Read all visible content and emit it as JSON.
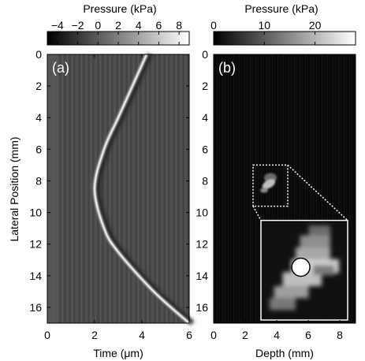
{
  "chart_data": [
    {
      "type": "heatmap",
      "panel_label": "(a)",
      "colorbar": {
        "title": "Pressure (kPa)",
        "range": [
          -5,
          9
        ],
        "ticks": [
          -4,
          -2,
          0,
          2,
          4,
          6,
          8
        ],
        "tick_labels": [
          "−4",
          "−2",
          "0",
          "2",
          "4",
          "6",
          "8"
        ],
        "colormap": "grayscale"
      },
      "xlabel": "Time (μm)",
      "ylabel": "Lateral Position (mm)",
      "xlim": [
        0,
        6
      ],
      "ylim": [
        0,
        17
      ],
      "xticks": [
        0,
        2,
        4,
        6
      ],
      "yticks": [
        0,
        2,
        4,
        6,
        8,
        10,
        12,
        14,
        16
      ],
      "y_inverted": true,
      "wavefront": {
        "shape": "hyperbola",
        "vertex": {
          "x": 2.0,
          "y": 8.5
        },
        "points": [
          {
            "x": 4.2,
            "y": 0
          },
          {
            "x": 3.6,
            "y": 2
          },
          {
            "x": 3.0,
            "y": 4
          },
          {
            "x": 2.4,
            "y": 6
          },
          {
            "x": 2.0,
            "y": 8.5
          },
          {
            "x": 2.4,
            "y": 11
          },
          {
            "x": 3.0,
            "y": 12.5
          },
          {
            "x": 4.5,
            "y": 15
          },
          {
            "x": 6.0,
            "y": 17
          }
        ]
      }
    },
    {
      "type": "heatmap",
      "panel_label": "(b)",
      "colorbar": {
        "title": "Pressure (kPa)",
        "range": [
          0,
          28
        ],
        "ticks": [
          0,
          10,
          20
        ],
        "tick_labels": [
          "0",
          "10",
          "20"
        ],
        "colormap": "grayscale"
      },
      "xlabel": "Depth (mm)",
      "xlim": [
        0,
        9
      ],
      "ylim": [
        0,
        17
      ],
      "xticks": [
        0,
        2,
        4,
        6,
        8
      ],
      "yticks": [
        0,
        2,
        4,
        6,
        8,
        10,
        12,
        14,
        16
      ],
      "y_inverted": true,
      "hotspot": {
        "x": 3.5,
        "y": 8.2
      },
      "zoom_box": {
        "x": [
          2.5,
          4.7
        ],
        "y": [
          7,
          9.6
        ]
      },
      "inset": {
        "x": [
          3.0,
          8.5
        ],
        "y": [
          10.5,
          16.8
        ],
        "marker": "white-circle"
      }
    }
  ]
}
